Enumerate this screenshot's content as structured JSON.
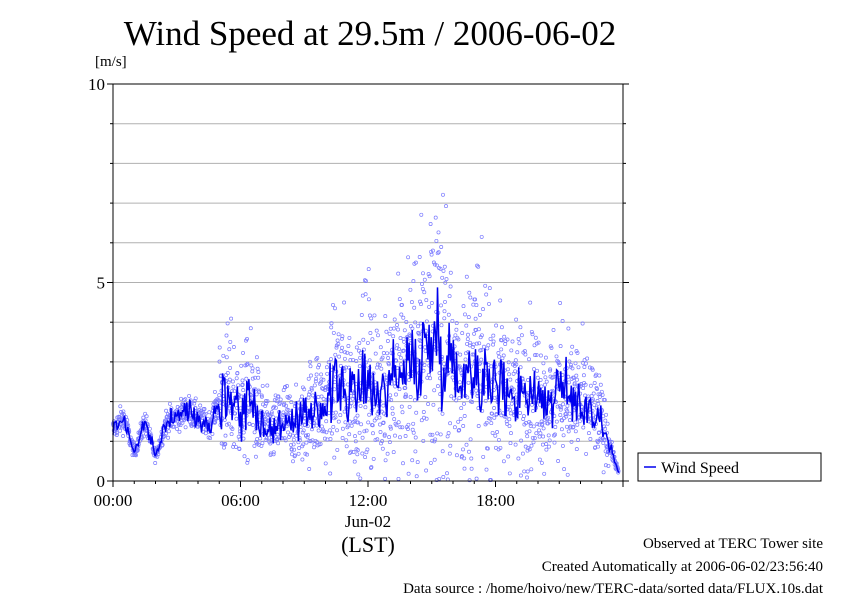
{
  "chart_data": {
    "type": "line",
    "title": "Wind Speed at 29.5m / 2006-06-02",
    "ylabel": "[m/s]",
    "xlabel": "(LST)",
    "x_date_label": "Jun-02",
    "x_ticks": [
      "00:00",
      "06:00",
      "12:00",
      "18:00"
    ],
    "y_ticks": [
      "0",
      "5",
      "10"
    ],
    "xlim_hours": [
      0,
      24
    ],
    "ylim": [
      0,
      10
    ],
    "grid": true,
    "legend": "right",
    "series": [
      {
        "name": "Wind Speed",
        "color": "#0000ee",
        "scatter_color": "#7a7aff",
        "hours": [
          0.0,
          0.5,
          1.0,
          1.5,
          2.0,
          2.5,
          3.0,
          3.5,
          4.0,
          4.5,
          5.0,
          5.5,
          6.0,
          6.5,
          7.0,
          7.5,
          8.0,
          8.5,
          9.0,
          9.5,
          10.0,
          10.5,
          11.0,
          11.5,
          12.0,
          12.5,
          13.0,
          13.5,
          14.0,
          14.5,
          15.0,
          15.5,
          16.0,
          16.5,
          17.0,
          17.5,
          18.0,
          18.5,
          19.0,
          19.5,
          20.0,
          20.5,
          21.0,
          21.5,
          22.0,
          22.5,
          23.0,
          23.5,
          23.8
        ],
        "values": [
          1.3,
          1.6,
          0.7,
          1.5,
          0.6,
          1.5,
          1.6,
          1.8,
          1.6,
          1.4,
          2.0,
          2.2,
          1.8,
          2.1,
          1.5,
          1.2,
          1.6,
          1.3,
          1.5,
          2.0,
          1.8,
          2.5,
          2.3,
          2.0,
          2.8,
          2.0,
          2.7,
          2.6,
          2.9,
          3.1,
          3.6,
          3.5,
          2.8,
          2.7,
          2.9,
          2.6,
          2.4,
          2.3,
          2.2,
          2.3,
          2.2,
          2.0,
          2.3,
          2.1,
          2.0,
          1.8,
          1.5,
          0.7,
          0.2
        ]
      }
    ]
  },
  "footer": {
    "observed": "Observed at TERC Tower site",
    "created": "Created Automatically at 2006-06-02/23:56:40",
    "source": "Data source : /home/hoivo/new/TERC-data/sorted  data/FLUX.10s.dat"
  }
}
